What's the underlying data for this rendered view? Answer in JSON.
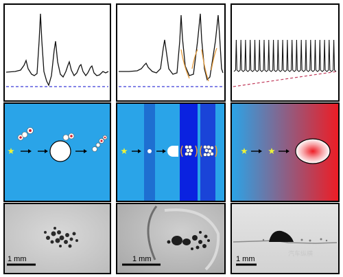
{
  "columns": [
    {
      "id": "left",
      "signal": {
        "trace_color": "#111111",
        "baseline_color": "#3b3bd6",
        "peak_count": 4
      },
      "schematic": {
        "background": "#2aa4e8",
        "steps": [
          "star-icon",
          "particle-cluster-icon",
          "bubble-icon",
          "breakup-icon"
        ]
      },
      "micrograph": {
        "scale_bar_label": "1 mm"
      }
    },
    {
      "id": "middle",
      "signal": {
        "trace_color": "#111111",
        "fit_color": "#e39a3c",
        "baseline_color": "#3b3bd6"
      },
      "schematic": {
        "background": "#2aa4e8",
        "band_colors": [
          "#1e6fd1",
          "#0a22e0",
          "#1a44d8"
        ],
        "steps": [
          "star-icon",
          "dot-icon",
          "half-bubble-icon",
          "cluster-icon",
          "cluster-icon"
        ]
      },
      "micrograph": {
        "scale_bar_label": "1 mm"
      }
    },
    {
      "id": "right",
      "signal": {
        "trace_color": "#111111",
        "baseline_color": "#c0395a",
        "spike_count": 22
      },
      "schematic": {
        "gradient_start": "#2aa4e8",
        "gradient_end": "#ee1c24",
        "steps": [
          "star-icon",
          "star-icon",
          "ellipse-icon"
        ]
      },
      "micrograph": {
        "scale_bar_label": "1 mm"
      }
    }
  ],
  "watermark": "汽车纵横"
}
